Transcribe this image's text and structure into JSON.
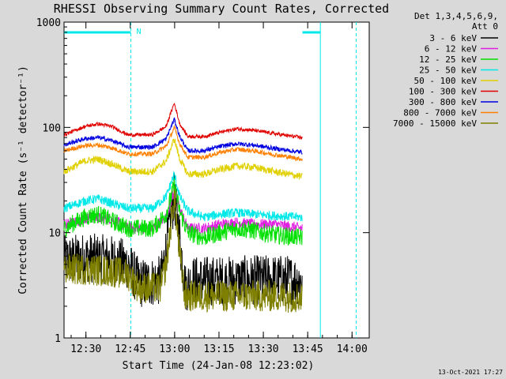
{
  "chart_data": {
    "type": "line",
    "title": "RHESSI Observing Summary Count Rates, Corrected",
    "xlabel": "Start Time (24-Jan-08 12:23:02)",
    "ylabel": "Corrected Count Rate (s⁻¹ detector⁻¹)",
    "yscale": "log",
    "ylim": [
      1,
      1000
    ],
    "xlim_minutes": [
      12.4,
      100.2
    ],
    "xticks": [
      {
        "m": 30,
        "label": "12:30"
      },
      {
        "m": 45,
        "label": "12:45"
      },
      {
        "m": 60,
        "label": "13:00"
      },
      {
        "m": 75,
        "label": "13:15"
      },
      {
        "m": 90,
        "label": "13:30"
      },
      {
        "m": 105,
        "label": "13:45"
      },
      {
        "m": 120,
        "label": "14:00"
      }
    ],
    "yticks": [
      {
        "v": 1,
        "label": "1"
      },
      {
        "v": 10,
        "label": "10"
      },
      {
        "v": 100,
        "label": "100"
      },
      {
        "v": 1000,
        "label": "1000"
      }
    ],
    "legend": {
      "position": "right",
      "header": [
        "Det 1,3,4,5,6,9,",
        "Att 0"
      ],
      "entries": [
        {
          "label": "3 - 6 keV",
          "color": "#000000"
        },
        {
          "label": "6 - 12 keV",
          "color": "#e020e0"
        },
        {
          "label": "12 - 25 keV",
          "color": "#00e000"
        },
        {
          "label": "25 - 50 keV",
          "color": "#00e8e8"
        },
        {
          "label": "50 - 100 keV",
          "color": "#e0d000"
        },
        {
          "label": "100 - 300 keV",
          "color": "#e00000"
        },
        {
          "label": "300 - 800 keV",
          "color": "#0000e0"
        },
        {
          "label": "800 - 7000 keV",
          "color": "#ff8000"
        },
        {
          "label": "7000 - 15000 keV",
          "color": "#808000"
        }
      ]
    },
    "annotations": {
      "night_marker": "N",
      "night_intervals_minutes": [
        [
          12.4,
          37.0
        ],
        [
          106.8,
          120.0
        ]
      ],
      "night_color": "#00e8e8"
    },
    "series": [
      {
        "band": "3 - 6 keV",
        "color": "#000000",
        "noise": 0.55,
        "points": [
          [
            12.4,
            5.5
          ],
          [
            20,
            5.8
          ],
          [
            30,
            5.5
          ],
          [
            36,
            5.0
          ],
          [
            40,
            3.3
          ],
          [
            48,
            3.5
          ],
          [
            50,
            7
          ],
          [
            53,
            22
          ],
          [
            55,
            9
          ],
          [
            57,
            3
          ],
          [
            60,
            3.5
          ],
          [
            75,
            3.5
          ],
          [
            90,
            3.6
          ],
          [
            105,
            3.5
          ],
          [
            112,
            3.5
          ],
          [
            118,
            4.5
          ]
        ]
      },
      {
        "band": "6 - 12 keV",
        "color": "#e020e0",
        "noise": 0.12,
        "points": [
          [
            12.4,
            12
          ],
          [
            22,
            14
          ],
          [
            30,
            13.5
          ],
          [
            36,
            11
          ],
          [
            45,
            11
          ],
          [
            50,
            14
          ],
          [
            53,
            25
          ],
          [
            55,
            17
          ],
          [
            58,
            11
          ],
          [
            64,
            11
          ],
          [
            70,
            12
          ],
          [
            76,
            12.5
          ],
          [
            82,
            12
          ],
          [
            90,
            12
          ],
          [
            100,
            11
          ],
          [
            105,
            11
          ],
          [
            112,
            11
          ],
          [
            118,
            12.5
          ]
        ]
      },
      {
        "band": "12 - 25 keV",
        "color": "#00e000",
        "noise": 0.2,
        "points": [
          [
            12.4,
            11
          ],
          [
            20,
            14
          ],
          [
            25,
            15
          ],
          [
            30,
            13
          ],
          [
            36,
            11
          ],
          [
            45,
            11
          ],
          [
            50,
            15
          ],
          [
            53,
            28
          ],
          [
            55,
            16
          ],
          [
            58,
            10
          ],
          [
            64,
            9
          ],
          [
            70,
            10
          ],
          [
            76,
            11
          ],
          [
            82,
            10.5
          ],
          [
            90,
            9.5
          ],
          [
            100,
            9
          ],
          [
            105,
            9
          ],
          [
            112,
            9.5
          ],
          [
            118,
            11
          ]
        ]
      },
      {
        "band": "25 - 50 keV",
        "color": "#00e8e8",
        "noise": 0.1,
        "points": [
          [
            12.4,
            17
          ],
          [
            20,
            20
          ],
          [
            25,
            21
          ],
          [
            30,
            19
          ],
          [
            36,
            17
          ],
          [
            45,
            17
          ],
          [
            50,
            22
          ],
          [
            53,
            36
          ],
          [
            55,
            22
          ],
          [
            58,
            16
          ],
          [
            64,
            14
          ],
          [
            70,
            15
          ],
          [
            76,
            15.5
          ],
          [
            82,
            15
          ],
          [
            90,
            14.5
          ],
          [
            100,
            14
          ],
          [
            105,
            14
          ],
          [
            112,
            15
          ],
          [
            118,
            18
          ]
        ]
      },
      {
        "band": "50 - 100 keV",
        "color": "#e0d000",
        "noise": 0.08,
        "points": [
          [
            12.4,
            38
          ],
          [
            20,
            48
          ],
          [
            25,
            50
          ],
          [
            30,
            45
          ],
          [
            36,
            38
          ],
          [
            45,
            38
          ],
          [
            50,
            48
          ],
          [
            53,
            78
          ],
          [
            55,
            50
          ],
          [
            58,
            36
          ],
          [
            64,
            36
          ],
          [
            70,
            40
          ],
          [
            76,
            43
          ],
          [
            82,
            42
          ],
          [
            90,
            38
          ],
          [
            100,
            34
          ],
          [
            105,
            33
          ],
          [
            112,
            34
          ],
          [
            118,
            40
          ]
        ]
      },
      {
        "band": "800 - 7000 keV",
        "color": "#ff8000",
        "noise": 0.05,
        "points": [
          [
            12.4,
            60
          ],
          [
            20,
            67
          ],
          [
            25,
            68
          ],
          [
            30,
            64
          ],
          [
            36,
            56
          ],
          [
            45,
            56
          ],
          [
            50,
            66
          ],
          [
            53,
            100
          ],
          [
            55,
            70
          ],
          [
            58,
            52
          ],
          [
            64,
            52
          ],
          [
            70,
            58
          ],
          [
            76,
            62
          ],
          [
            82,
            60
          ],
          [
            90,
            55
          ],
          [
            100,
            50
          ],
          [
            105,
            49
          ],
          [
            112,
            51
          ],
          [
            118,
            60
          ]
        ]
      },
      {
        "band": "300 - 800 keV",
        "color": "#0000e0",
        "noise": 0.05,
        "points": [
          [
            12.4,
            68
          ],
          [
            20,
            78
          ],
          [
            25,
            80
          ],
          [
            30,
            75
          ],
          [
            36,
            65
          ],
          [
            45,
            65
          ],
          [
            50,
            78
          ],
          [
            53,
            120
          ],
          [
            55,
            82
          ],
          [
            58,
            60
          ],
          [
            64,
            60
          ],
          [
            70,
            66
          ],
          [
            76,
            70
          ],
          [
            82,
            68
          ],
          [
            90,
            63
          ],
          [
            100,
            58
          ],
          [
            105,
            57
          ],
          [
            112,
            59
          ],
          [
            118,
            70
          ]
        ]
      },
      {
        "band": "100 - 300 keV",
        "color": "#e00000",
        "noise": 0.04,
        "points": [
          [
            12.4,
            85
          ],
          [
            20,
            102
          ],
          [
            25,
            108
          ],
          [
            30,
            102
          ],
          [
            36,
            85
          ],
          [
            45,
            85
          ],
          [
            50,
            102
          ],
          [
            53,
            170
          ],
          [
            55,
            108
          ],
          [
            58,
            82
          ],
          [
            64,
            82
          ],
          [
            70,
            90
          ],
          [
            76,
            97
          ],
          [
            82,
            94
          ],
          [
            90,
            87
          ],
          [
            100,
            80
          ],
          [
            105,
            78
          ],
          [
            112,
            82
          ],
          [
            118,
            95
          ]
        ]
      },
      {
        "band": "7000 - 15000 keV",
        "color": "#808000",
        "noise": 0.35,
        "points": [
          [
            12.4,
            4.5
          ],
          [
            20,
            4.5
          ],
          [
            30,
            4.3
          ],
          [
            36,
            4.0
          ],
          [
            40,
            3.0
          ],
          [
            48,
            3.0
          ],
          [
            50,
            5
          ],
          [
            53,
            22
          ],
          [
            55,
            6
          ],
          [
            57,
            2.5
          ],
          [
            60,
            2.5
          ],
          [
            75,
            2.5
          ],
          [
            90,
            2.5
          ],
          [
            105,
            2.4
          ],
          [
            112,
            2.4
          ],
          [
            118,
            3.0
          ]
        ]
      }
    ],
    "footer_timestamp": "13-Oct-2021 17:27"
  }
}
